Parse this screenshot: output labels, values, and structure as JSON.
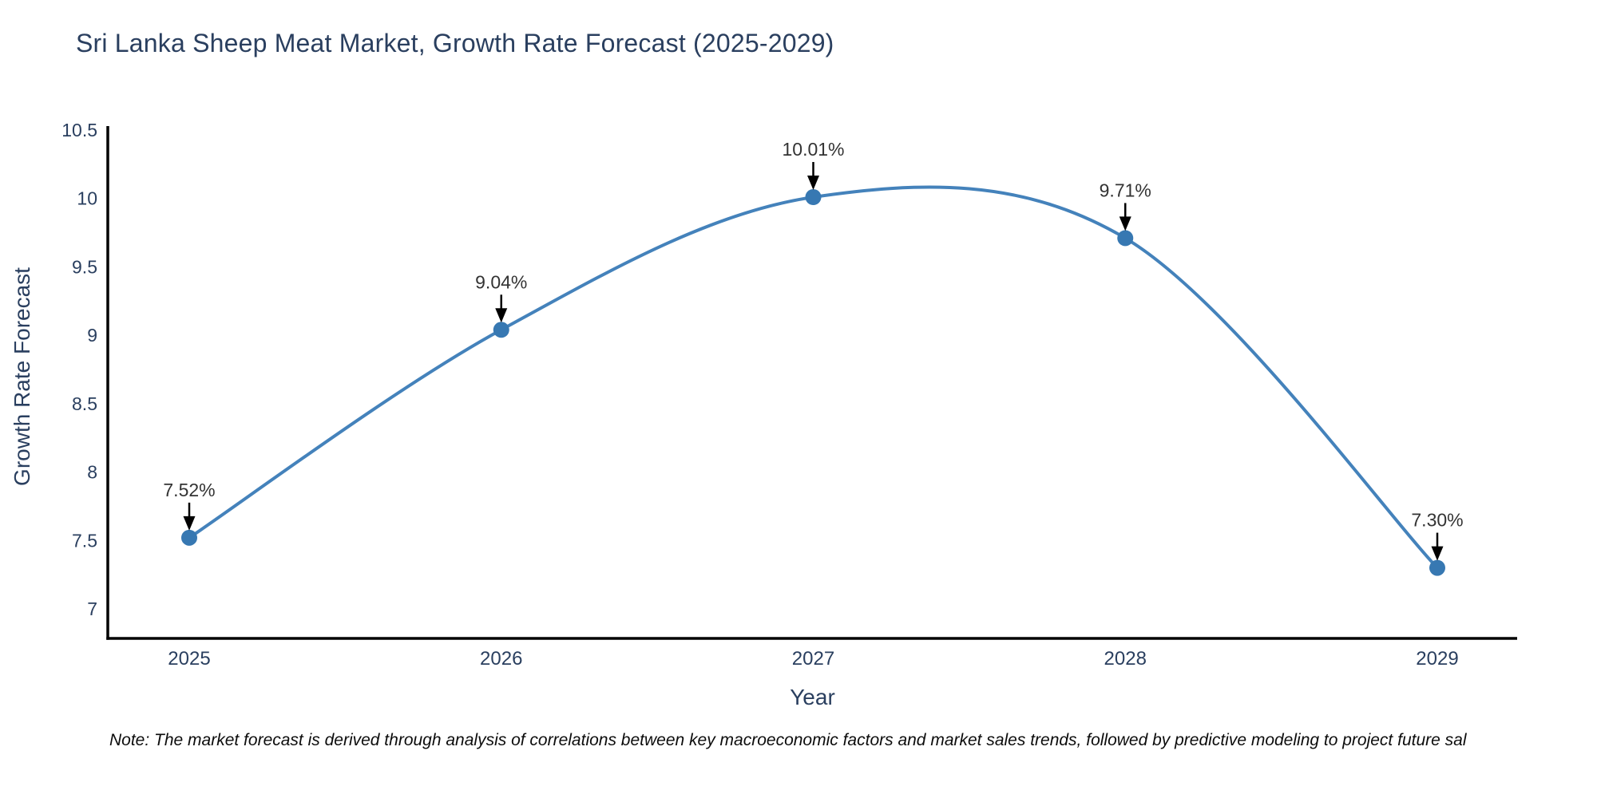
{
  "chart_data": {
    "type": "line",
    "title": "Sri Lanka Sheep Meat Market, Growth Rate Forecast (2025-2029)",
    "xlabel": "Year",
    "ylabel": "Growth Rate Forecast",
    "x": [
      2025,
      2026,
      2027,
      2028,
      2029
    ],
    "xtick_labels": [
      "2025",
      "2026",
      "2027",
      "2028",
      "2029"
    ],
    "series": [
      {
        "name": "Growth Rate Forecast",
        "values": [
          7.52,
          9.04,
          10.01,
          9.71,
          7.3
        ]
      }
    ],
    "point_labels": [
      "7.52%",
      "9.04%",
      "10.01%",
      "9.71%",
      "7.30%"
    ],
    "yticks": [
      7,
      7.5,
      8,
      8.5,
      9,
      9.5,
      10,
      10.5
    ],
    "ytick_labels": [
      "7",
      "7.5",
      "8",
      "8.5",
      "9",
      "9.5",
      "10",
      "10.5"
    ],
    "ylim": [
      6.78,
      10.53
    ],
    "line_shape": "spline",
    "grid": false,
    "legend_position": "none",
    "colors": {
      "line": "#4482bb",
      "marker": "#3778b2",
      "axis": "#000000",
      "tick_text": "#2a3f5f",
      "annotation_text": "#333333",
      "annotation_arrow": "#000000",
      "background": "#ffffff"
    }
  },
  "footnote": {
    "text": "Note: The market forecast is derived through analysis of correlations between key macroeconomic factors and market sales trends, followed by predictive modeling to project future sal"
  }
}
